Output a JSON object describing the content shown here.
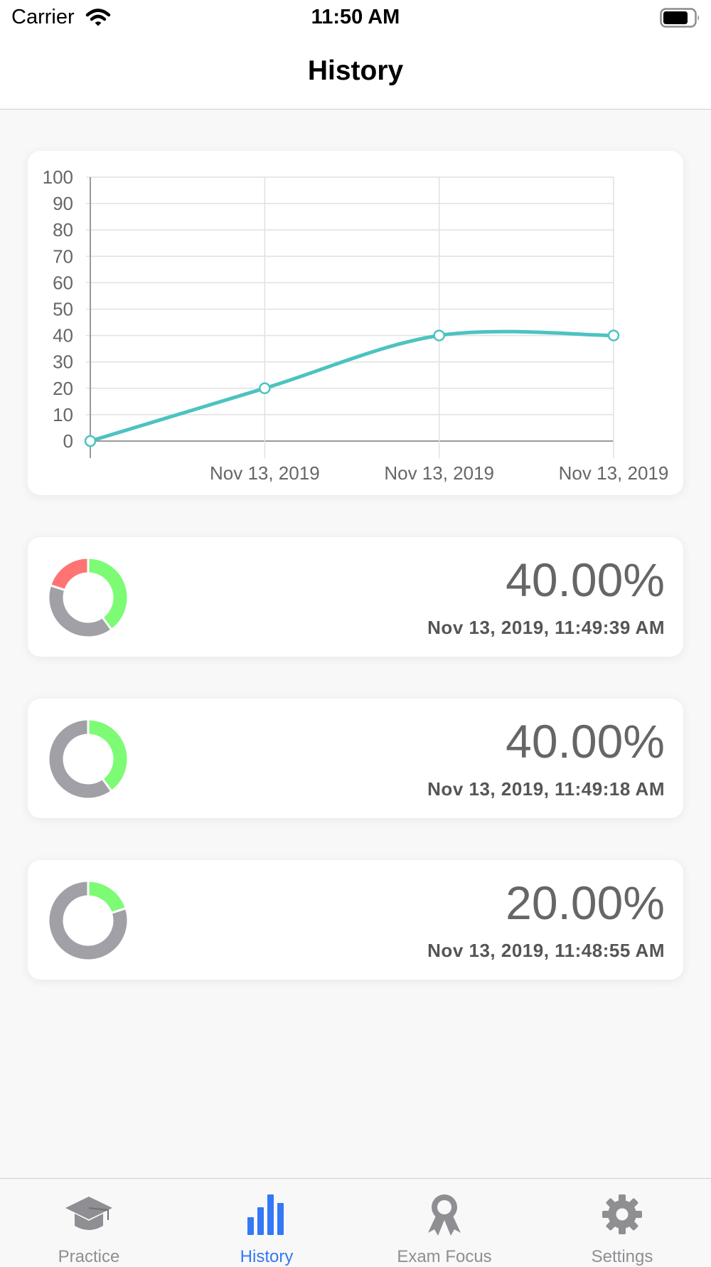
{
  "status_bar": {
    "carrier": "Carrier",
    "time": "11:50 AM"
  },
  "nav": {
    "title": "History"
  },
  "colors": {
    "line": "#4cc3c0",
    "correct": "#7dfb75",
    "incorrect": "#ff7373",
    "unanswered": "#a0a0a6",
    "tab_active": "#3478f6",
    "tab_inactive": "#8e8e93"
  },
  "chart_data": {
    "type": "line",
    "title": "",
    "xlabel": "",
    "ylabel": "",
    "x": [
      "",
      "Nov 13, 2019",
      "Nov 13, 2019",
      "Nov 13, 2019"
    ],
    "series": [
      {
        "values": [
          0,
          20,
          40,
          40
        ]
      }
    ],
    "ylim": [
      0,
      100
    ],
    "yticks": [
      0,
      10,
      20,
      30,
      40,
      50,
      60,
      70,
      80,
      90,
      100
    ],
    "grid": true,
    "curve": "smooth"
  },
  "results": [
    {
      "score": "40.00%",
      "timestamp": "Nov 13, 2019, 11:49:39 AM",
      "breakdown": {
        "correct": 0.4,
        "unanswered": 0.4,
        "incorrect": 0.2
      }
    },
    {
      "score": "40.00%",
      "timestamp": "Nov 13, 2019, 11:49:18 AM",
      "breakdown": {
        "correct": 0.4,
        "unanswered": 0.6,
        "incorrect": 0
      }
    },
    {
      "score": "20.00%",
      "timestamp": "Nov 13, 2019, 11:48:55 AM",
      "breakdown": {
        "correct": 0.2,
        "unanswered": 0.8,
        "incorrect": 0
      }
    }
  ],
  "tabs": [
    {
      "label": "Practice",
      "icon": "graduation-cap-icon",
      "active": false
    },
    {
      "label": "History",
      "icon": "bar-chart-icon",
      "active": true
    },
    {
      "label": "Exam Focus",
      "icon": "award-ribbon-icon",
      "active": false
    },
    {
      "label": "Settings",
      "icon": "gear-icon",
      "active": false
    }
  ]
}
